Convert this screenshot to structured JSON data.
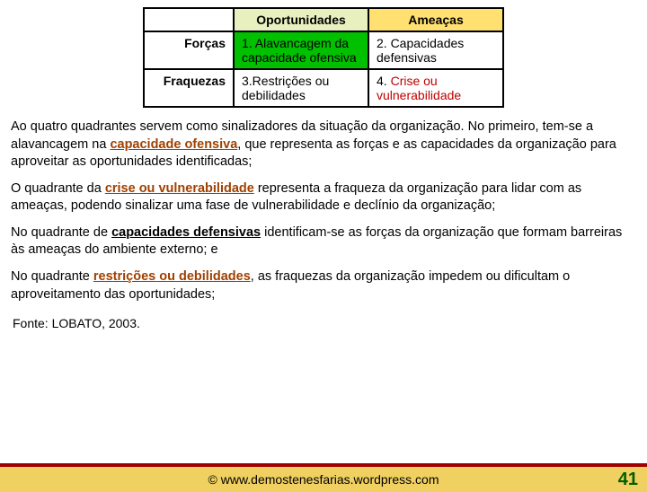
{
  "matrix": {
    "header_opp": "Oportunidades",
    "header_threat": "Ameaças",
    "row1_label": "Forças",
    "row2_label": "Fraquezas",
    "q1": "1. Alavancagem da capacidade ofensiva",
    "q2": "2. Capacidades defensivas",
    "q3": "3.Restrições ou debilidades",
    "q4_a": "4. ",
    "q4_b": "Crise ou vulnerabilidade",
    "colors": {
      "header_opp_bg": "#e8f0c0",
      "header_threat_bg": "#ffe070",
      "q1_bg": "#00c000",
      "q4_text": "#c00000",
      "border": "#000000"
    }
  },
  "paragraphs": {
    "p1_a": "Ao quatro quadrantes servem como sinalizadores da situação da organização. No primeiro, tem-se a alavancagem na ",
    "p1_term": "capacidade ofensiva",
    "p1_b": ", que representa as forças e as capacidades da organização para aproveitar  as oportunidades identificadas;",
    "p2_a": "O quadrante da ",
    "p2_term": "crise ou vulnerabilidade",
    "p2_b": " representa a fraqueza da organização para lidar com as ameaças, podendo sinalizar uma fase de vulnerabilidade e declínio da organização;",
    "p3_a": "No quadrante de ",
    "p3_term": "capacidades defensivas",
    "p3_b": " identificam-se as forças da organização que formam barreiras às ameaças do ambiente externo; e",
    "p4_a": "No quadrante ",
    "p4_term": "restrições ou debilidades",
    "p4_b": ", as fraquezas da organização impedem ou dificultam o aproveitamento das oportunidades;"
  },
  "source": "Fonte: LOBATO, 2003.",
  "footer": {
    "text": "©  www.demostenesfarias.wordpress.com",
    "slide_number": "41",
    "bg": "#f0d060",
    "sep": "#a00000",
    "num_color": "#006000"
  }
}
